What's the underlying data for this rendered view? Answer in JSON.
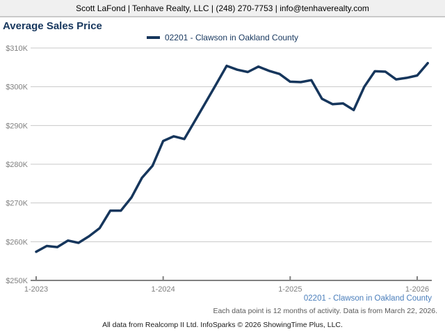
{
  "header": {
    "contact_line": "Scott LaFond | Tenhave Realty, LLC | (248) 270-7753 | info@tenhaverealty.com"
  },
  "chart": {
    "title": "Average Sales Price",
    "legend": {
      "label": "02201 - Clawson in Oakland County"
    }
  },
  "chart_data": {
    "type": "line",
    "title": "Average Sales Price",
    "categories": [
      "1-2023",
      "2-2023",
      "3-2023",
      "4-2023",
      "5-2023",
      "6-2023",
      "7-2023",
      "8-2023",
      "9-2023",
      "10-2023",
      "11-2023",
      "12-2023",
      "1-2024",
      "2-2024",
      "3-2024",
      "4-2024",
      "5-2024",
      "6-2024",
      "7-2024",
      "8-2024",
      "9-2024",
      "10-2024",
      "11-2024",
      "12-2024",
      "1-2025",
      "2-2025",
      "3-2025",
      "4-2025",
      "5-2025",
      "6-2025",
      "7-2025",
      "8-2025",
      "9-2025",
      "10-2025",
      "11-2025",
      "12-2025",
      "1-2026",
      "2-2026"
    ],
    "series": [
      {
        "name": "02201 - Clawson in Oakland County",
        "unit": "USD thousands",
        "values": [
          257.4,
          258.9,
          258.6,
          260.3,
          259.7,
          261.4,
          263.5,
          268.0,
          268.0,
          271.4,
          276.5,
          279.6,
          286.0,
          287.2,
          286.5,
          291.2,
          295.9,
          300.6,
          305.4,
          304.4,
          303.8,
          305.2,
          304.1,
          303.3,
          301.3,
          301.2,
          301.7,
          296.9,
          295.5,
          295.7,
          294.0,
          300.0,
          304.0,
          303.9,
          301.9,
          302.3,
          302.9,
          306.1
        ]
      }
    ],
    "ylim": [
      250,
      310
    ],
    "y_ticks": [
      250,
      260,
      270,
      280,
      290,
      300,
      310
    ],
    "y_tick_labels": [
      "$250K",
      "$260K",
      "$270K",
      "$280K",
      "$290K",
      "$300K",
      "$310K"
    ],
    "x_tick_indices": [
      0,
      12,
      24,
      36
    ],
    "x_tick_labels": [
      "1-2023",
      "1-2024",
      "1-2025",
      "1-2026"
    ],
    "grid": true,
    "legend_position": "top-center"
  },
  "footer": {
    "series_link": "02201 - Clawson in Oakland County",
    "data_note": "Each data point is 12 months of activity. Data is from March 22, 2026.",
    "attribution": "All data from Realcomp II Ltd. InfoSparks © 2026 ShowingTime Plus, LLC."
  },
  "colors": {
    "line": "#16365c",
    "title_text": "#17375e",
    "legend_text": "#17375e",
    "link_text": "#4a7ebb",
    "note_text": "#595959",
    "axis_label": "#808080",
    "axis_line": "#808080",
    "gridline": "#c8c8c8",
    "header_bg": "#f0f0f0",
    "header_border": "#c9c9c9"
  }
}
